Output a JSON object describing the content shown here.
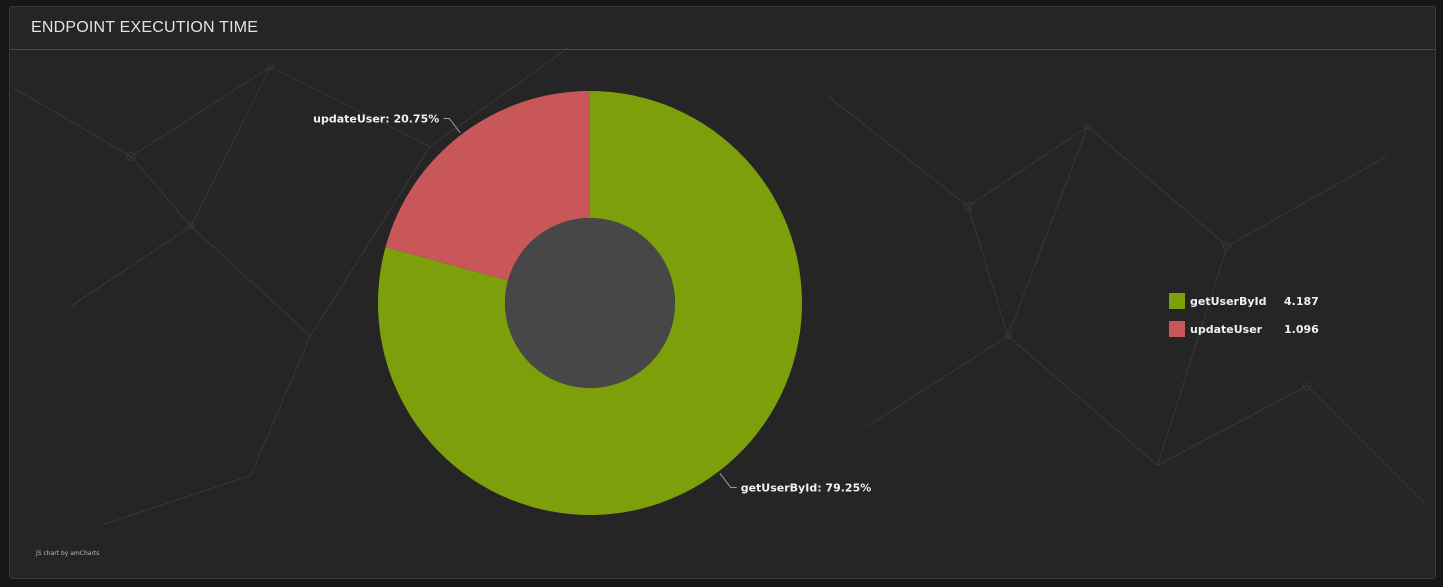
{
  "panel": {
    "title": "ENDPOINT EXECUTION TIME",
    "credit": "JS chart by amCharts"
  },
  "chart_data": {
    "type": "pie",
    "title": "ENDPOINT EXECUTION TIME",
    "donut": true,
    "categories": [
      "getUserById",
      "updateUser"
    ],
    "values": [
      4.187,
      1.096
    ],
    "slice_labels": [
      "getUserById: 79.25%",
      "updateUser: 20.75%"
    ],
    "colors": [
      "#7d9f0b",
      "#c9575a"
    ],
    "legend": {
      "position": "right",
      "entries": [
        {
          "label": "getUserById",
          "value": "4.187",
          "color": "#7d9f0b"
        },
        {
          "label": "updateUser",
          "value": "1.096",
          "color": "#c9575a"
        }
      ]
    }
  }
}
